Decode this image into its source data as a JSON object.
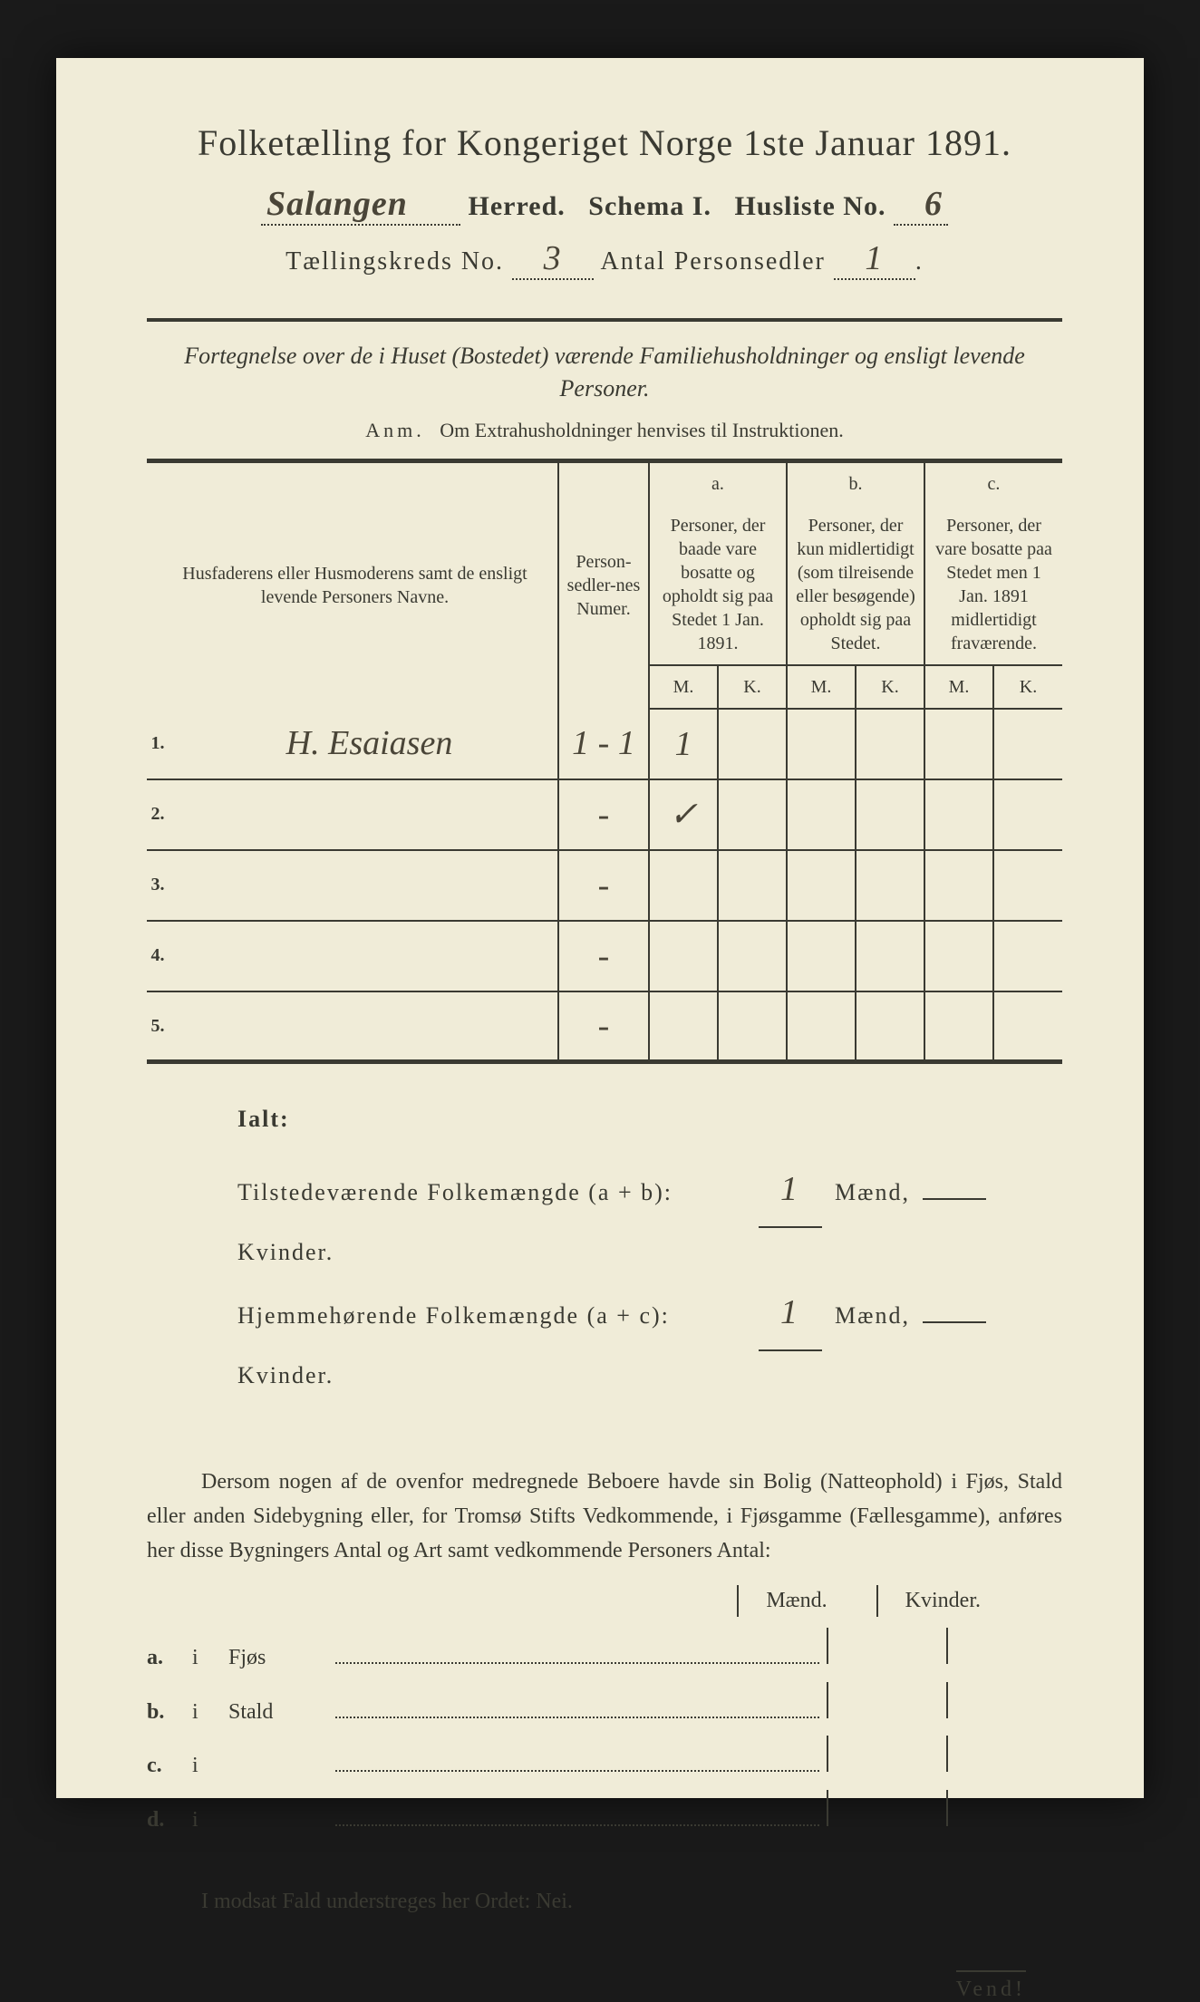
{
  "page": {
    "background_color": "#f0ecd8",
    "text_color": "#3a3a32",
    "handwriting_color": "#4a4538"
  },
  "header": {
    "title": "Folketælling for Kongeriget Norge 1ste Januar 1891.",
    "herred_value": "Salangen",
    "herred_label": "Herred.",
    "schema_label": "Schema I.",
    "husliste_label": "Husliste No.",
    "husliste_value": "6",
    "kreds_label": "Tællingskreds No.",
    "kreds_value": "3",
    "antal_label": "Antal Personsedler",
    "antal_value": "1"
  },
  "subtitle": "Fortegnelse over de i Huset (Bostedet) værende Familiehusholdninger og ensligt levende Personer.",
  "anm_prefix": "Anm.",
  "anm_text": "Om Extrahusholdninger henvises til Instruktionen.",
  "table": {
    "col_name": "Husfaderens eller Husmoderens samt de ensligt levende Personers Navne.",
    "col_num": "Person-sedler-nes Numer.",
    "col_a_top": "a.",
    "col_a": "Personer, der baade vare bosatte og opholdt sig paa Stedet 1 Jan. 1891.",
    "col_b_top": "b.",
    "col_b": "Personer, der kun midlertidigt (som tilreisende eller besøgende) opholdt sig paa Stedet.",
    "col_c_top": "c.",
    "col_c": "Personer, der vare bosatte paa Stedet men 1 Jan. 1891 midlertidigt fraværende.",
    "mk_m": "M.",
    "mk_k": "K.",
    "rows": [
      {
        "n": "1.",
        "name": "H. Esaiasen",
        "num": "1 - 1",
        "a_m": "1",
        "a_k": "",
        "b_m": "",
        "b_k": "",
        "c_m": "",
        "c_k": ""
      },
      {
        "n": "2.",
        "name": "",
        "num": "-",
        "a_m": "✓",
        "a_k": "",
        "b_m": "",
        "b_k": "",
        "c_m": "",
        "c_k": ""
      },
      {
        "n": "3.",
        "name": "",
        "num": "-",
        "a_m": "",
        "a_k": "",
        "b_m": "",
        "b_k": "",
        "c_m": "",
        "c_k": ""
      },
      {
        "n": "4.",
        "name": "",
        "num": "-",
        "a_m": "",
        "a_k": "",
        "b_m": "",
        "b_k": "",
        "c_m": "",
        "c_k": ""
      },
      {
        "n": "5.",
        "name": "",
        "num": "-",
        "a_m": "",
        "a_k": "",
        "b_m": "",
        "b_k": "",
        "c_m": "",
        "c_k": ""
      }
    ]
  },
  "ialt": {
    "heading": "Ialt:",
    "line1_label": "Tilstedeværende Folkemængde (a + b):",
    "line2_label": "Hjemmehørende Folkemængde (a + c):",
    "maend": "Mænd,",
    "kvinder": "Kvinder.",
    "v1m": "1",
    "v1k": "",
    "v2m": "1",
    "v2k": ""
  },
  "para": "Dersom nogen af de ovenfor medregnede Beboere havde sin Bolig (Natteophold) i Fjøs, Stald eller anden Sidebygning eller, for Tromsø Stifts Vedkommende, i Fjøsgamme (Fællesgamme), anføres her disse Bygningers Antal og Art samt vedkommende Personers Antal:",
  "mk_head": {
    "m": "Mænd.",
    "k": "Kvinder."
  },
  "abcd": [
    {
      "k": "a.",
      "i": "i",
      "label": "Fjøs"
    },
    {
      "k": "b.",
      "i": "i",
      "label": "Stald"
    },
    {
      "k": "c.",
      "i": "i",
      "label": ""
    },
    {
      "k": "d.",
      "i": "i",
      "label": ""
    }
  ],
  "nei": "I modsat Fald understreges her Ordet: Nei.",
  "vend": "Vend!"
}
